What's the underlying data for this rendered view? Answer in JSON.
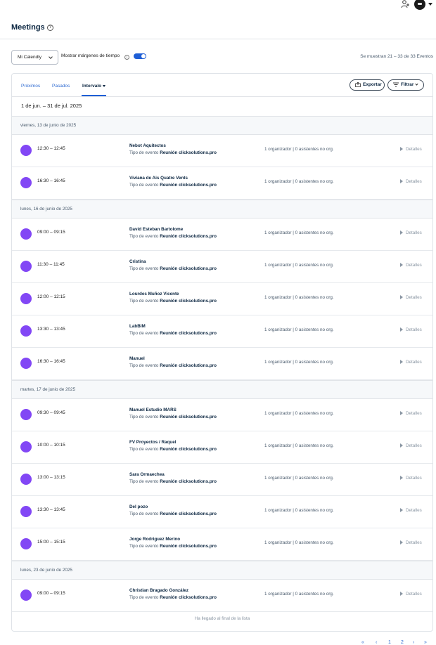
{
  "header": {
    "title": "Meetings",
    "help_icon": "?"
  },
  "controls": {
    "calendly_select": "Mi Calendly",
    "margins_label": "Mostrar márgenes de tiempo",
    "margins_toggle_on": true,
    "count_text": "Se muestran 21 – 33 de 33 Eventos"
  },
  "tabs": [
    {
      "label": "Próximos",
      "active": false
    },
    {
      "label": "Pasados",
      "active": false
    },
    {
      "label": "Intervalo",
      "active": true
    }
  ],
  "actions": {
    "export_label": "Exportar",
    "filter_label": "Filtrar"
  },
  "range_label": "1 de jun. – 31 de jul. 2025",
  "event_type_prefix": "Tipo de evento",
  "accent_color": "#8247f5",
  "groups": [
    {
      "date": "viernes, 13 de junio de 2025",
      "events": [
        {
          "time": "12:30 – 12:45",
          "name": "Nebot Aquitectos",
          "event_type": "Reunión clicksolutions.pro",
          "hosts": "1 organizador | 0 asistentes no org.",
          "details": "Detalles"
        },
        {
          "time": "16:30 – 16:45",
          "name": "Viviana de Ais Quatre Vents",
          "event_type": "Reunión clicksolutions.pro",
          "hosts": "1 organizador | 0 asistentes no org.",
          "details": "Detalles"
        }
      ]
    },
    {
      "date": "lunes, 16 de junio de 2025",
      "events": [
        {
          "time": "09:00 – 09:15",
          "name": "David Esteban Bartolome",
          "event_type": "Reunión clicksolutions.pro",
          "hosts": "1 organizador | 0 asistentes no org.",
          "details": "Detalles"
        },
        {
          "time": "11:30 – 11:45",
          "name": "Cristina",
          "event_type": "Reunión clicksolutions.pro",
          "hosts": "1 organizador | 0 asistentes no org.",
          "details": "Detalles"
        },
        {
          "time": "12:00 – 12:15",
          "name": "Lourdes Muñoz Vicente",
          "event_type": "Reunión clicksolutions.pro",
          "hosts": "1 organizador | 0 asistentes no org.",
          "details": "Detalles"
        },
        {
          "time": "13:30 – 13:45",
          "name": "LabBIM",
          "event_type": "Reunión clicksolutions.pro",
          "hosts": "1 organizador | 0 asistentes no org.",
          "details": "Detalles"
        },
        {
          "time": "16:30 – 16:45",
          "name": "Manuel",
          "event_type": "Reunión clicksolutions.pro",
          "hosts": "1 organizador | 0 asistentes no org.",
          "details": "Detalles"
        }
      ]
    },
    {
      "date": "martes, 17 de junio de 2025",
      "events": [
        {
          "time": "09:30 – 09:45",
          "name": "Manuel Estudio MARS",
          "event_type": "Reunión clicksolutions.pro",
          "hosts": "1 organizador | 0 asistentes no org.",
          "details": "Detalles"
        },
        {
          "time": "10:00 – 10:15",
          "name": "FV Proyectos / Raquel",
          "event_type": "Reunión clicksolutions.pro",
          "hosts": "1 organizador | 0 asistentes no org.",
          "details": "Detalles"
        },
        {
          "time": "13:00 – 13:15",
          "name": "Sara Ormaechea",
          "event_type": "Reunión clicksolutions.pro",
          "hosts": "1 organizador | 0 asistentes no org.",
          "details": "Detalles"
        },
        {
          "time": "13:30 – 13:45",
          "name": "Del pozo",
          "event_type": "Reunión clicksolutions.pro",
          "hosts": "1 organizador | 0 asistentes no org.",
          "details": "Detalles"
        },
        {
          "time": "15:00 – 15:15",
          "name": "Jorge Rodriguez Merino",
          "event_type": "Reunión clicksolutions.pro",
          "hosts": "1 organizador | 0 asistentes no org.",
          "details": "Detalles"
        }
      ]
    },
    {
      "date": "lunes, 23 de junio de 2025",
      "events": [
        {
          "time": "09:00 – 09:15",
          "name": "Christian Bragado González",
          "event_type": "Reunión clicksolutions.pro",
          "hosts": "1 organizador | 0 asistentes no org.",
          "details": "Detalles"
        }
      ]
    }
  ],
  "end_label": "Ha llegado al final de la lista",
  "pagination": {
    "first": "«",
    "prev": "‹",
    "pages": [
      "1",
      "2"
    ],
    "next": "›",
    "last": "»"
  }
}
